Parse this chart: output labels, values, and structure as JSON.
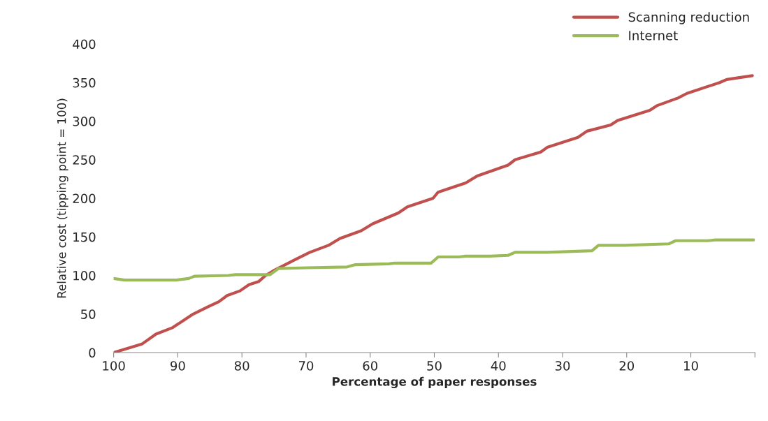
{
  "chart_data": {
    "type": "line",
    "xlabel": "Percentage of paper responses",
    "ylabel": "Relative cost (tipping point = 100)",
    "xlim": [
      100,
      0
    ],
    "xticks": [
      100,
      90,
      80,
      70,
      60,
      50,
      40,
      30,
      20,
      10,
      {
        "value": 0,
        "label": null
      }
    ],
    "ylim": [
      0,
      400
    ],
    "yticks": [
      0,
      50,
      100,
      150,
      200,
      250,
      300,
      350,
      400
    ],
    "grid": false,
    "legend": "top right",
    "marker": "none",
    "line_style": "solid",
    "series": [
      {
        "name": "Scanning reduction",
        "color": "#c0504d",
        "x": [
          100,
          95.6,
          93.4,
          90.9,
          89.4,
          87.6,
          85.4,
          83.6,
          82.3,
          80.3,
          78.9,
          77.4,
          76.3,
          74.9,
          71.6,
          69.4,
          66.5,
          64.7,
          61.4,
          59.6,
          55.6,
          54.2,
          50.2,
          49.4,
          45.1,
          43.3,
          38.5,
          37.4,
          33.4,
          32.4,
          27.6,
          26.2,
          22.5,
          21.4,
          16.4,
          15.3,
          12.0,
          10.6,
          5.5,
          4.4,
          0.4
        ],
        "values": [
          0,
          11,
          24,
          32,
          40,
          50,
          59,
          66,
          74,
          80,
          88,
          92,
          100,
          107,
          121,
          130,
          139,
          148,
          158,
          167,
          181,
          189,
          200,
          208,
          220,
          229,
          243,
          250,
          260,
          266,
          279,
          287,
          295,
          301,
          314,
          320,
          330,
          336,
          350,
          354,
          359
        ]
      },
      {
        "name": "Internet",
        "color": "#9bbb59",
        "x": [
          100,
          98.3,
          90.2,
          88.3,
          87.4,
          82.1,
          81,
          75.6,
          74.3,
          69.8,
          63.6,
          62.3,
          57.1,
          56.2,
          50.5,
          49.4,
          46.2,
          45.1,
          41.4,
          38.5,
          37.4,
          32.4,
          25.4,
          24.4,
          20.4,
          13.4,
          12.4,
          7.3,
          6.2,
          0.2
        ],
        "values": [
          96,
          94,
          94,
          96,
          99,
          100,
          101,
          101,
          109,
          110,
          111,
          114,
          115,
          116,
          116,
          124,
          124,
          125,
          125,
          126,
          130,
          130,
          132,
          139,
          139,
          141,
          145,
          145,
          146,
          146
        ]
      }
    ]
  }
}
